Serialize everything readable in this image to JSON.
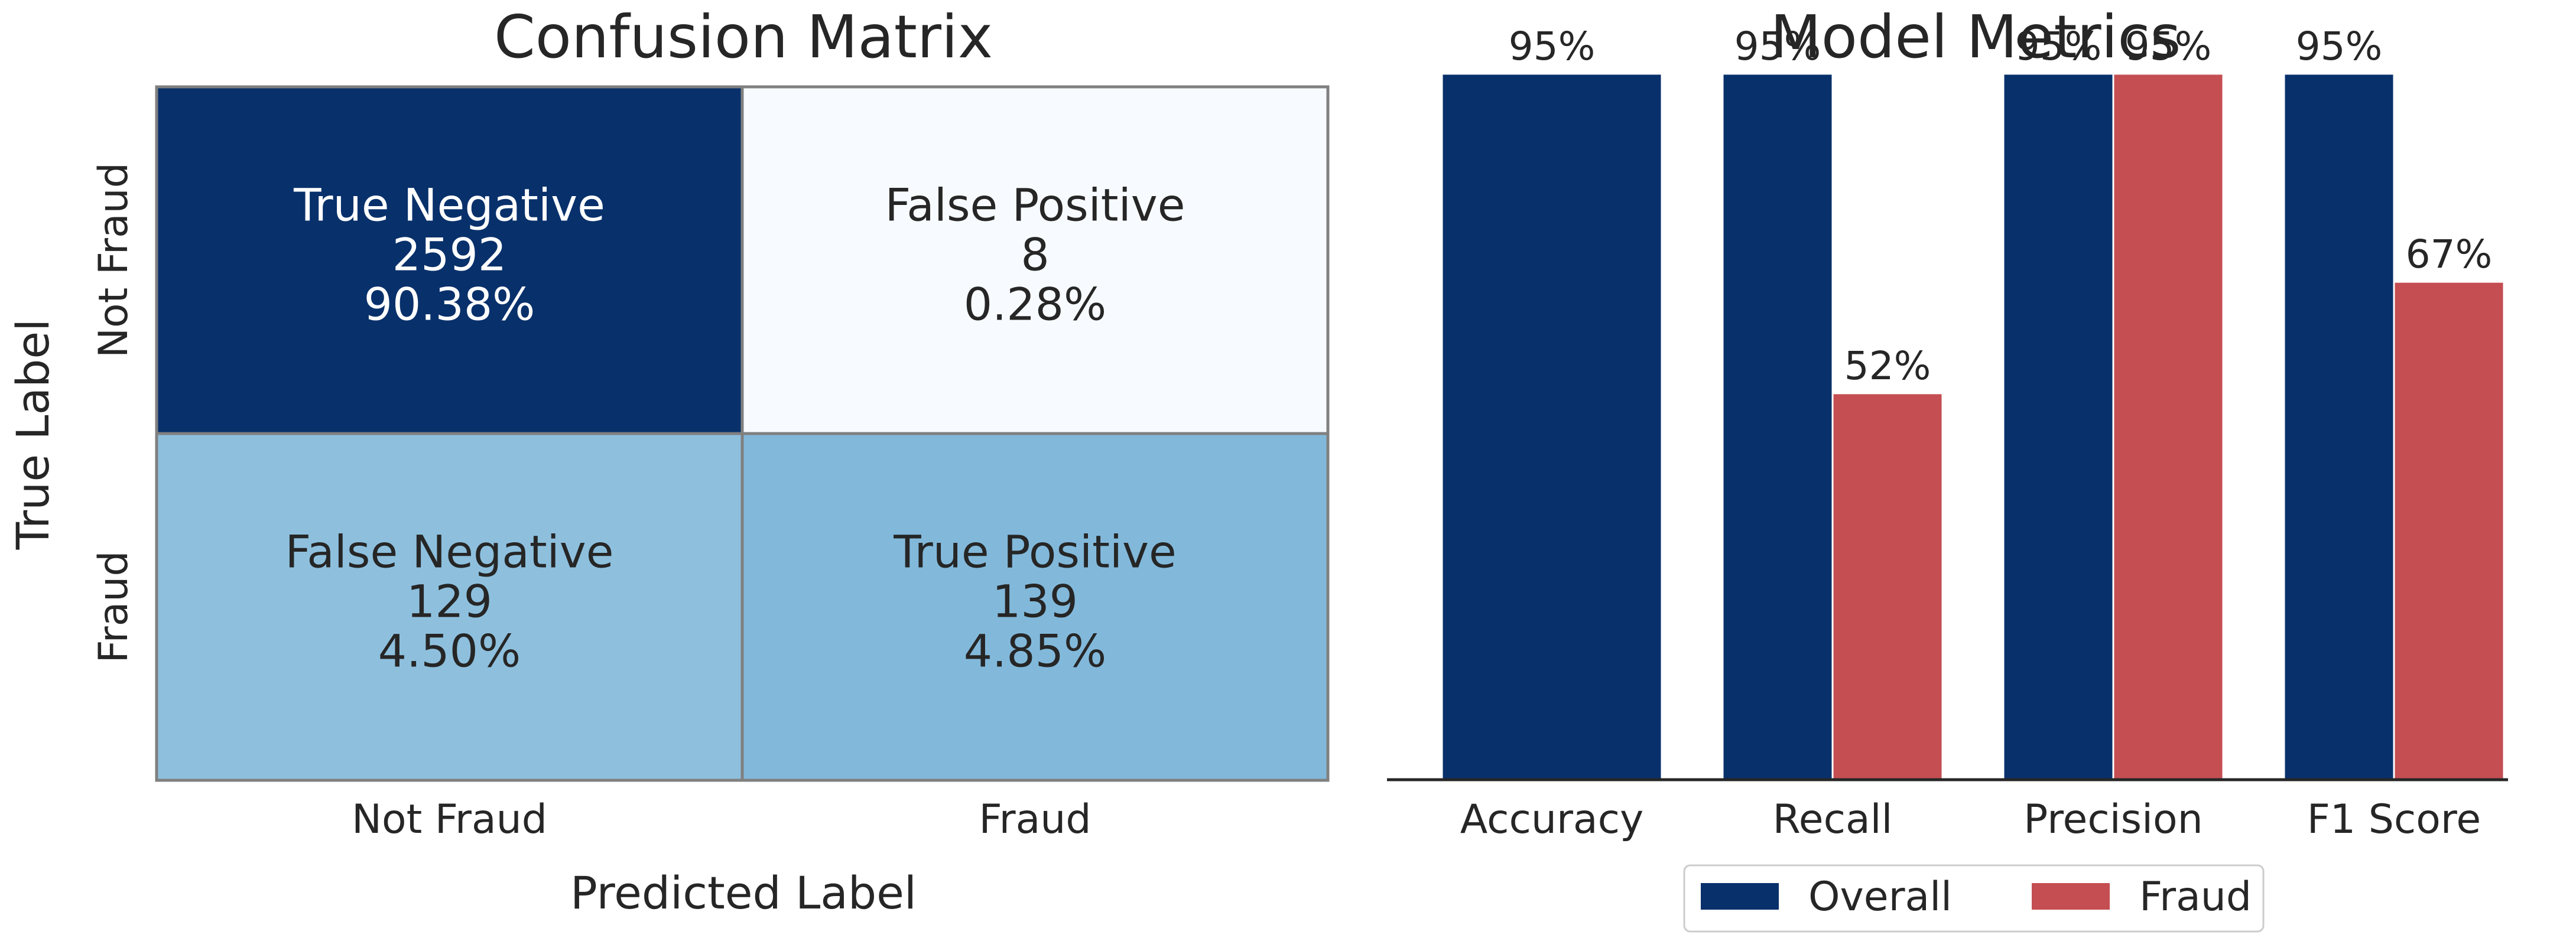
{
  "chart_data": [
    {
      "type": "heatmap",
      "title": "Confusion Matrix",
      "xlabel": "Predicted Label",
      "ylabel": "True Label",
      "x_categories": [
        "Not Fraud",
        "Fraud"
      ],
      "y_categories": [
        "Not Fraud",
        "Fraud"
      ],
      "cells": [
        [
          {
            "name": "True Negative",
            "count": "2592",
            "percent": "90.38%",
            "color": "#08306b",
            "text_color": "#ffffff"
          },
          {
            "name": "False Positive",
            "count": "8",
            "percent": "0.28%",
            "color": "#f7fbff",
            "text_color": "#262626"
          }
        ],
        [
          {
            "name": "False Negative",
            "count": "129",
            "percent": "4.50%",
            "color": "#8ec0de",
            "text_color": "#262626"
          },
          {
            "name": "True Positive",
            "count": "139",
            "percent": "4.85%",
            "color": "#82b9db",
            "text_color": "#262626"
          }
        ]
      ],
      "border_color": "#808080"
    },
    {
      "type": "bar",
      "title": "Model Metrics",
      "categories": [
        "Accuracy",
        "Recall",
        "Precision",
        "F1 Score"
      ],
      "ylim": [
        0,
        100
      ],
      "y_axis_visible": false,
      "legend_position": "bottom-center",
      "series": [
        {
          "name": "Overall",
          "color": "#08306b",
          "values": [
            95,
            95,
            95,
            95
          ],
          "labels": [
            "95%",
            "95%",
            "95%",
            "95%"
          ]
        },
        {
          "name": "Fraud",
          "color": "#c44e52",
          "values": [
            null,
            52,
            95,
            67
          ],
          "labels": [
            "",
            "52%",
            "95%",
            "67%"
          ]
        }
      ]
    }
  ]
}
